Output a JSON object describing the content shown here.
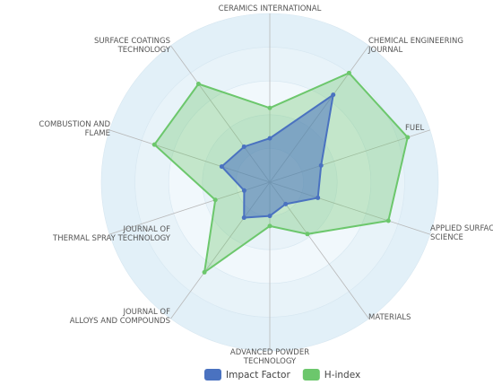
{
  "chart_data": {
    "type": "radar",
    "categories": [
      [
        "CERAMICS INTERNATIONAL"
      ],
      [
        "CHEMICAL ENGINEERING",
        "JOURNAL"
      ],
      [
        "FUEL"
      ],
      [
        "APPLIED SURFACE",
        "SCIENCE"
      ],
      [
        "MATERIALS"
      ],
      [
        "ADVANCED POWDER",
        "TECHNOLOGY"
      ],
      [
        "JOURNAL OF",
        "ALLOYS AND COMPOUNDS"
      ],
      [
        "JOURNAL OF",
        "THERMAL SPRAY TECHNOLOGY"
      ],
      [
        "COMBUSTION AND",
        "FLAME"
      ],
      [
        "SURFACE COATINGS",
        "TECHNOLOGY"
      ]
    ],
    "series": [
      {
        "name": "H-index",
        "color": "#6cc76c",
        "values": [
          2.2,
          4.0,
          4.3,
          3.7,
          1.9,
          1.3,
          3.3,
          1.7,
          3.6,
          3.6
        ]
      },
      {
        "name": "Impact Factor",
        "color": "#4a72c0",
        "values": [
          1.3,
          3.2,
          1.6,
          1.5,
          0.8,
          1.0,
          1.3,
          0.8,
          1.5,
          1.3
        ]
      }
    ],
    "rlim": [
      0,
      5
    ],
    "rticks": [
      1,
      2,
      3,
      4,
      5
    ],
    "legend": "bottom"
  }
}
